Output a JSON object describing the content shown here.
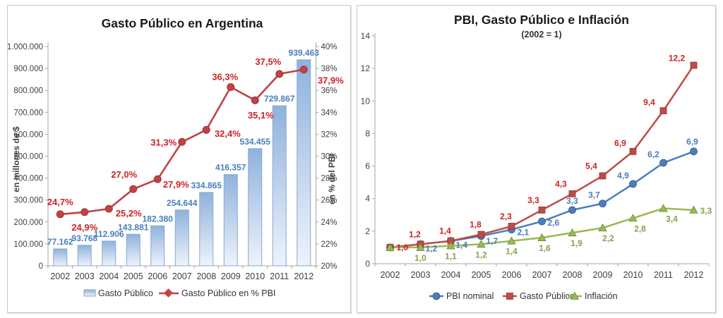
{
  "colors": {
    "bar_fill_top": "#8fb2dc",
    "bar_fill_bottom": "#eef3fb",
    "bar_border": "#85a9d4",
    "bar_label_blue": "#4a7ebb",
    "pct_line_red": "#bf4346",
    "pct_marker_stroke": "#9e3538",
    "red_label": "#cd2127",
    "series_blue": "#4a7ebb",
    "series_red": "#be4b48",
    "series_green": "#98b954",
    "green_label": "#87a24c",
    "blue_label": "#4a7ebb",
    "axis_line": "#a6a6a6",
    "tick_text": "#3f3f3f",
    "panel_border": "#c6c6c6"
  },
  "chart_data": [
    {
      "type": "bar",
      "title": "Gasto Público en Argentina",
      "ylabel": "en millones de $",
      "y2label": "en % del PBI",
      "grid": false,
      "legend_position": "bottom",
      "categories": [
        "2002",
        "2003",
        "2004",
        "2005",
        "2006",
        "2007",
        "2008",
        "2009",
        "2010",
        "2011",
        "2012"
      ],
      "y_ticks": [
        "0",
        "100.000",
        "200.000",
        "300.000",
        "400.000",
        "500.000",
        "600.000",
        "700.000",
        "800.000",
        "900.000",
        "1.000.000"
      ],
      "ylim": [
        0,
        1000000
      ],
      "y2_ticks": [
        "20%",
        "22%",
        "24%",
        "26%",
        "28%",
        "30%",
        "32%",
        "34%",
        "36%",
        "38%",
        "40%"
      ],
      "y2lim": [
        20,
        40
      ],
      "series": [
        {
          "name": "Gasto Público",
          "type": "bar",
          "axis": "left",
          "values": [
            77162,
            93768,
            112906,
            143881,
            182380,
            254644,
            334865,
            416357,
            534455,
            729867,
            939463
          ],
          "labels": [
            "77.162",
            "93.768",
            "112.906",
            "143.881",
            "182.380",
            "254.644",
            "334.865",
            "416.357",
            "534.455",
            "729.867",
            "939.463"
          ]
        },
        {
          "name": "Gasto Público en % PBI",
          "type": "line",
          "axis": "right",
          "values": [
            24.7,
            24.9,
            25.2,
            27.0,
            27.9,
            31.3,
            32.4,
            36.3,
            35.1,
            37.5,
            37.9
          ],
          "labels": [
            "24,7%",
            "24,9%",
            "25,2%",
            "27,0%",
            "27,9%",
            "31,3%",
            "32,4%",
            "36,3%",
            "35,1%",
            "37,5%",
            "37,9%"
          ]
        }
      ]
    },
    {
      "type": "line",
      "title": "PBI, Gasto Público e Inflación",
      "subtitle": "(2002 = 1)",
      "grid": false,
      "legend_position": "bottom",
      "categories": [
        "2002",
        "2003",
        "2004",
        "2005",
        "2006",
        "2007",
        "2008",
        "2009",
        "2010",
        "2011",
        "2012"
      ],
      "y_ticks": [
        "0",
        "2",
        "4",
        "6",
        "8",
        "10",
        "12",
        "14"
      ],
      "ylim": [
        0,
        14
      ],
      "series": [
        {
          "name": "PBI nominal",
          "marker": "circle",
          "values": [
            1.0,
            1.2,
            1.4,
            1.7,
            2.1,
            2.6,
            3.3,
            3.7,
            4.9,
            6.2,
            6.9
          ],
          "labels": [
            null,
            "1,2",
            "1,4",
            "1,7",
            "2,1",
            "2,6",
            "3,3",
            "3,7",
            "4,9",
            "6,2",
            "6,9"
          ]
        },
        {
          "name": "Gasto Público",
          "marker": "square",
          "values": [
            1.0,
            1.2,
            1.4,
            1.8,
            2.3,
            3.3,
            4.3,
            5.4,
            6.9,
            9.4,
            12.2
          ],
          "labels": [
            "1,0",
            "1,2",
            "1,4",
            "1,8",
            "2,3",
            "3,3",
            "4,3",
            "5,4",
            "6,9",
            "9,4",
            "12,2"
          ]
        },
        {
          "name": "Inflación",
          "marker": "triangle",
          "values": [
            1.0,
            1.0,
            1.1,
            1.2,
            1.4,
            1.6,
            1.9,
            2.2,
            2.8,
            3.4,
            3.3
          ],
          "labels": [
            null,
            "1,0",
            "1,1",
            "1,2",
            "1,4",
            "1,6",
            "1,9",
            "2,2",
            "2,8",
            "3,4",
            "3,3"
          ]
        }
      ]
    }
  ]
}
